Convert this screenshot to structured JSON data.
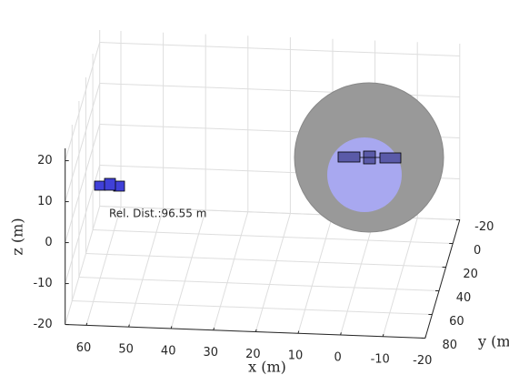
{
  "chart_data": {
    "type": "scatter3d",
    "xlabel": "x (m)",
    "ylabel": "y (m)",
    "zlabel": "z (m)",
    "annotation": "Rel. Dist.:96.55 m",
    "xlim": [
      -20,
      65
    ],
    "ylim": [
      -20,
      80
    ],
    "zlim": [
      -20,
      23
    ],
    "xticks": [
      60,
      50,
      40,
      30,
      20,
      10,
      0,
      -10,
      -20
    ],
    "yticks": [
      -20,
      0,
      20,
      40,
      60,
      80
    ],
    "zticks": [
      -20,
      -10,
      0,
      10,
      20
    ],
    "grid": true
  }
}
